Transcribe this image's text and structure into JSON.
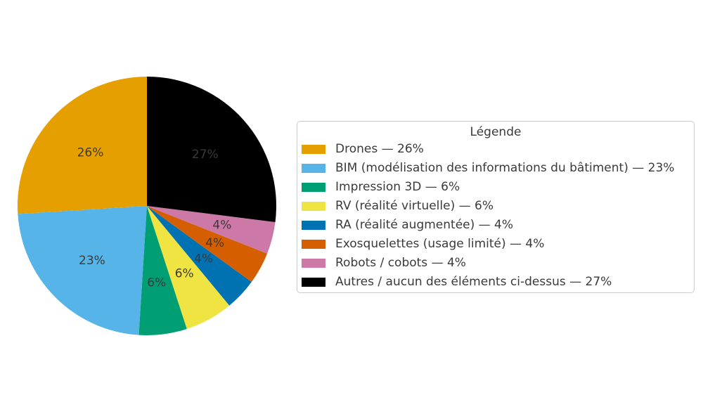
{
  "figure": {
    "background_color": "#ffffff",
    "text_color": "#3a3a3a"
  },
  "chart_data": {
    "type": "pie",
    "legend_title": "Légende",
    "legend_position": "right",
    "start_angle_deg": 90,
    "direction": "counterclockwise",
    "pct_label_distance": 0.6,
    "pct_label_color": "#3a3a3a",
    "slices": [
      {
        "id": "drones",
        "label": "Drones",
        "value": 26,
        "pct_label": "26%",
        "legend_label": "Drones — 26%",
        "color": "#E69F00"
      },
      {
        "id": "bim",
        "label": "BIM (modélisation des informations du bâtiment)",
        "value": 23,
        "pct_label": "23%",
        "legend_label": "BIM (modélisation des informations du bâtiment) — 23%",
        "color": "#56B4E9"
      },
      {
        "id": "impression-3d",
        "label": "Impression 3D",
        "value": 6,
        "pct_label": "6%",
        "legend_label": "Impression 3D — 6%",
        "color": "#009E73"
      },
      {
        "id": "rv",
        "label": "RV (réalité virtuelle)",
        "value": 6,
        "pct_label": "6%",
        "legend_label": "RV (réalité virtuelle) — 6%",
        "color": "#F0E442"
      },
      {
        "id": "ra",
        "label": "RA (réalité augmentée)",
        "value": 4,
        "pct_label": "4%",
        "legend_label": "RA (réalité augmentée) — 4%",
        "color": "#0072B2"
      },
      {
        "id": "exosquelettes",
        "label": "Exosquelettes (usage limité)",
        "value": 4,
        "pct_label": "4%",
        "legend_label": "Exosquelettes (usage limité) — 4%",
        "color": "#D55E00"
      },
      {
        "id": "robots-cobots",
        "label": "Robots / cobots",
        "value": 4,
        "pct_label": "4%",
        "legend_label": "Robots / cobots — 4%",
        "color": "#CC79A7"
      },
      {
        "id": "autres",
        "label": "Autres / aucun des éléments ci-dessus",
        "value": 27,
        "pct_label": "27%",
        "legend_label": "Autres / aucun des éléments ci-dessus — 27%",
        "color": "#000000"
      }
    ]
  }
}
